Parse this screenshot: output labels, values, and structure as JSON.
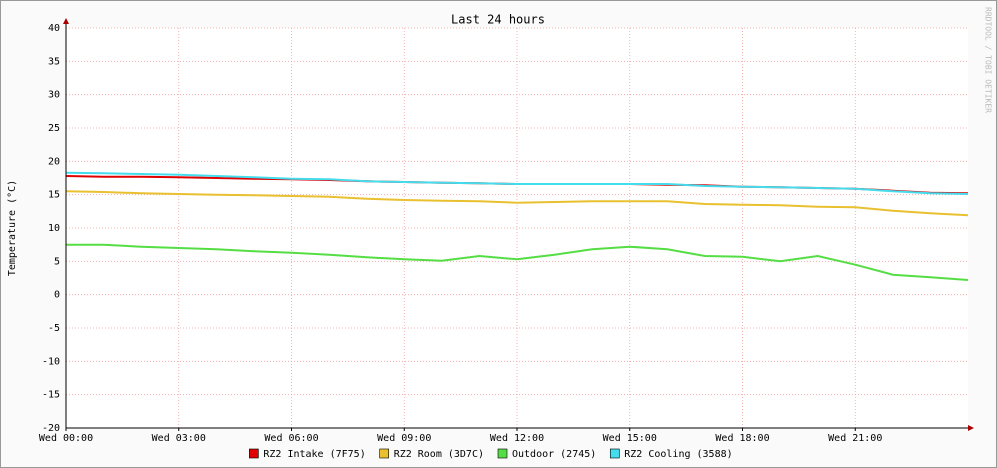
{
  "chart_data": {
    "type": "line",
    "title": "Last 24 hours",
    "y_label": "Temperature (°C)",
    "watermark": "RRDTOOL / TOBI OETIKER",
    "x": [
      0,
      1,
      2,
      3,
      4,
      5,
      6,
      7,
      8,
      9,
      10,
      11,
      12,
      13,
      14,
      15,
      16,
      17,
      18,
      19,
      20,
      21,
      22,
      23,
      24
    ],
    "xlim": [
      0,
      24
    ],
    "xticks": [
      {
        "value": 0,
        "label": "Wed 00:00"
      },
      {
        "value": 3,
        "label": "Wed 03:00"
      },
      {
        "value": 6,
        "label": "Wed 06:00"
      },
      {
        "value": 9,
        "label": "Wed 09:00"
      },
      {
        "value": 12,
        "label": "Wed 12:00"
      },
      {
        "value": 15,
        "label": "Wed 15:00"
      },
      {
        "value": 18,
        "label": "Wed 18:00"
      },
      {
        "value": 21,
        "label": "Wed 21:00"
      }
    ],
    "ylim": [
      -20,
      40
    ],
    "yticks": [
      -20,
      -15,
      -10,
      -5,
      0,
      5,
      10,
      15,
      20,
      25,
      30,
      35,
      40
    ],
    "grid": true,
    "legend": "bottom",
    "series": [
      {
        "name": "RZ2 Intake (7F75)",
        "color": "#e00000",
        "values": [
          17.8,
          17.7,
          17.7,
          17.6,
          17.5,
          17.4,
          17.3,
          17.2,
          17.0,
          16.9,
          16.8,
          16.7,
          16.6,
          16.6,
          16.6,
          16.6,
          16.5,
          16.4,
          16.2,
          16.1,
          16.0,
          15.9,
          15.6,
          15.3,
          15.2
        ]
      },
      {
        "name": "RZ2 Room (3D7C)",
        "color": "#e8c030",
        "values": [
          15.5,
          15.4,
          15.2,
          15.1,
          15.0,
          14.9,
          14.8,
          14.7,
          14.4,
          14.2,
          14.1,
          14.0,
          13.8,
          13.9,
          14.0,
          14.0,
          14.0,
          13.6,
          13.5,
          13.4,
          13.2,
          13.1,
          12.6,
          12.2,
          11.9
        ]
      },
      {
        "name": "Outdoor (2745)",
        "color": "#55dd44",
        "values": [
          7.5,
          7.5,
          7.2,
          7.0,
          6.8,
          6.5,
          6.3,
          6.0,
          5.6,
          5.3,
          5.1,
          5.8,
          5.3,
          6.0,
          6.8,
          7.2,
          6.8,
          5.8,
          5.7,
          5.0,
          5.8,
          4.5,
          3.0,
          2.6,
          2.2
        ]
      },
      {
        "name": "RZ2 Cooling (3588)",
        "color": "#44ddee",
        "values": [
          18.3,
          18.2,
          18.1,
          18.0,
          17.8,
          17.6,
          17.4,
          17.3,
          17.0,
          16.9,
          16.8,
          16.7,
          16.6,
          16.6,
          16.6,
          16.6,
          16.6,
          16.3,
          16.2,
          16.1,
          16.0,
          15.9,
          15.5,
          15.2,
          15.1
        ]
      }
    ]
  }
}
